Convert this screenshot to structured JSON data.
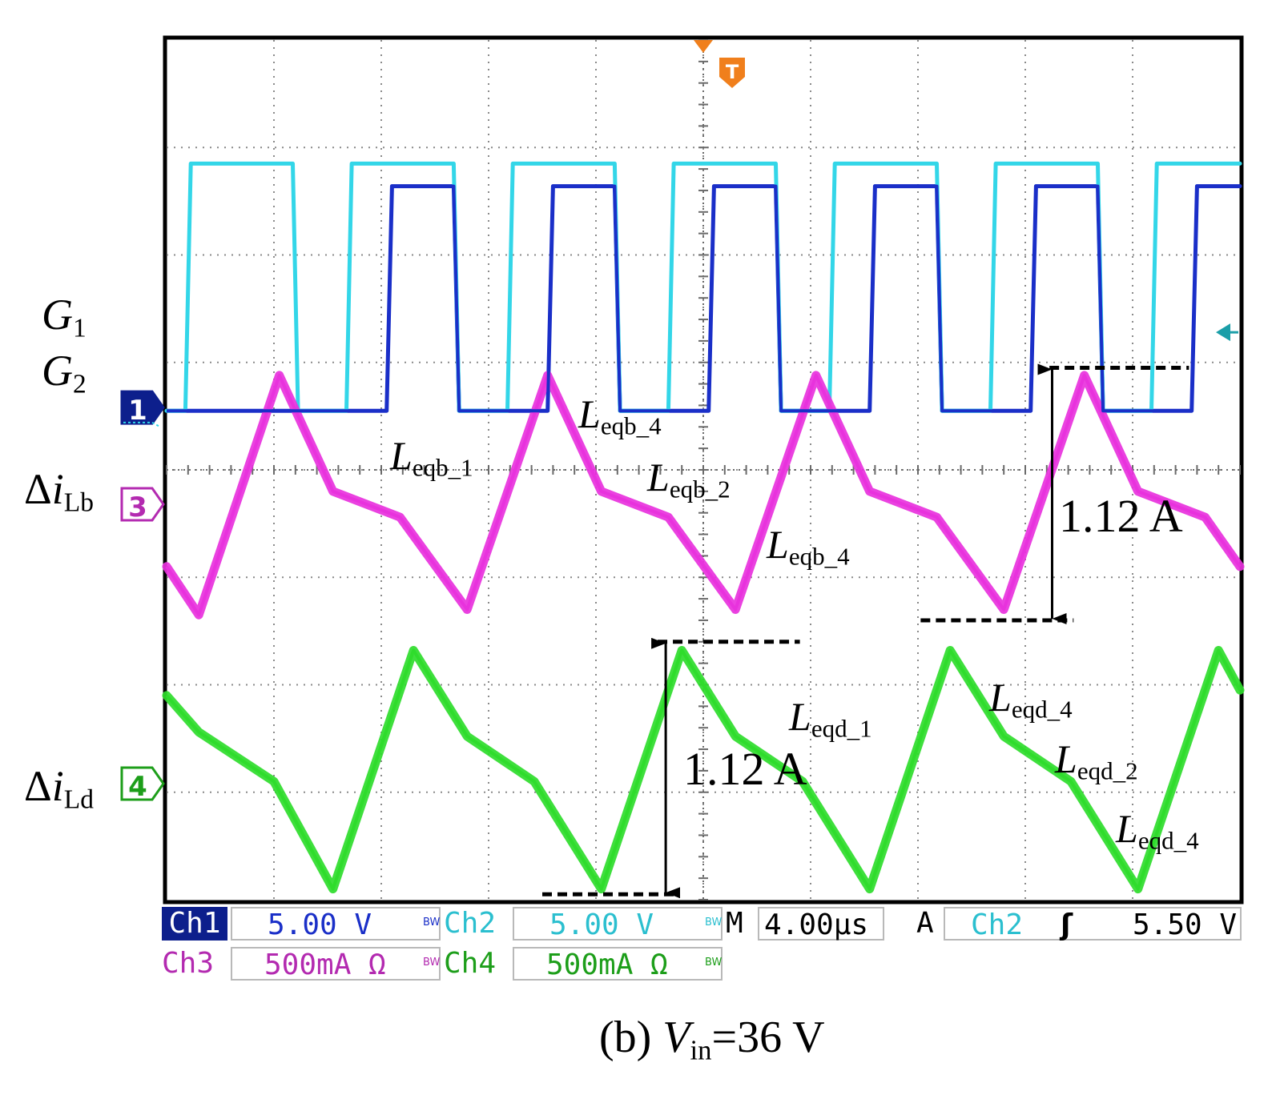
{
  "chart_data": {
    "type": "line",
    "title": "",
    "xlabel": "",
    "ylabel": "",
    "x_divisions": 10,
    "y_divisions": 8,
    "time_per_div_us": 4.0,
    "grid": true,
    "series": [
      {
        "channel": "1",
        "color": "#1a2fc8",
        "points": [
          [
            0,
            0.55
          ],
          [
            8.2,
            0.55
          ],
          [
            8.4,
            2.64
          ],
          [
            10.7,
            2.64
          ],
          [
            10.9,
            0.55
          ],
          [
            14.2,
            0.55
          ],
          [
            14.4,
            2.64
          ],
          [
            16.7,
            2.64
          ],
          [
            16.9,
            0.55
          ],
          [
            20.2,
            0.55
          ],
          [
            20.4,
            2.64
          ],
          [
            22.7,
            2.64
          ],
          [
            22.9,
            0.55
          ],
          [
            26.2,
            0.55
          ],
          [
            26.4,
            2.64
          ],
          [
            28.7,
            2.64
          ],
          [
            28.9,
            0.55
          ],
          [
            32.2,
            0.55
          ],
          [
            32.4,
            2.64
          ],
          [
            34.7,
            2.64
          ],
          [
            34.9,
            0.55
          ],
          [
            38.2,
            0.55
          ],
          [
            38.4,
            2.64
          ],
          [
            40,
            2.64
          ]
        ]
      },
      {
        "channel": "2",
        "color": "#33d6e8",
        "points": [
          [
            0,
            0.55
          ],
          [
            0.7,
            0.55
          ],
          [
            0.9,
            2.85
          ],
          [
            4.7,
            2.85
          ],
          [
            4.9,
            0.55
          ],
          [
            6.7,
            0.55
          ],
          [
            6.9,
            2.85
          ],
          [
            10.7,
            2.85
          ],
          [
            10.9,
            0.55
          ],
          [
            12.7,
            0.55
          ],
          [
            12.9,
            2.85
          ],
          [
            16.7,
            2.85
          ],
          [
            16.9,
            0.55
          ],
          [
            18.7,
            0.55
          ],
          [
            18.9,
            2.85
          ],
          [
            22.7,
            2.85
          ],
          [
            22.9,
            0.55
          ],
          [
            24.7,
            0.55
          ],
          [
            24.9,
            2.85
          ],
          [
            28.7,
            2.85
          ],
          [
            28.9,
            0.55
          ],
          [
            30.7,
            0.55
          ],
          [
            30.9,
            2.85
          ],
          [
            34.7,
            2.85
          ],
          [
            34.9,
            0.55
          ],
          [
            36.7,
            0.55
          ],
          [
            36.9,
            2.85
          ],
          [
            40,
            2.85
          ]
        ]
      },
      {
        "channel": "3",
        "color": "#e832dd",
        "points": [
          [
            0,
            -0.9
          ],
          [
            1.2,
            -1.35
          ],
          [
            4.2,
            0.88
          ],
          [
            6.2,
            -0.2
          ],
          [
            8.7,
            -0.44
          ],
          [
            11.2,
            -1.3
          ],
          [
            14.2,
            0.88
          ],
          [
            16.2,
            -0.2
          ],
          [
            18.7,
            -0.44
          ],
          [
            21.2,
            -1.3
          ],
          [
            24.2,
            0.88
          ],
          [
            26.2,
            -0.2
          ],
          [
            28.7,
            -0.44
          ],
          [
            31.2,
            -1.3
          ],
          [
            34.2,
            0.88
          ],
          [
            36.2,
            -0.2
          ],
          [
            38.7,
            -0.44
          ],
          [
            40,
            -0.9
          ]
        ]
      },
      {
        "channel": "4",
        "color": "#2fdc2c",
        "points": [
          [
            0,
            -2.1
          ],
          [
            1.2,
            -2.44
          ],
          [
            4.0,
            -2.9
          ],
          [
            6.2,
            -3.9
          ],
          [
            9.2,
            -1.68
          ],
          [
            11.2,
            -2.48
          ],
          [
            13.7,
            -2.9
          ],
          [
            16.2,
            -3.9
          ],
          [
            19.2,
            -1.68
          ],
          [
            21.2,
            -2.48
          ],
          [
            23.7,
            -2.9
          ],
          [
            26.2,
            -3.9
          ],
          [
            29.2,
            -1.68
          ],
          [
            31.2,
            -2.48
          ],
          [
            33.7,
            -2.9
          ],
          [
            36.2,
            -3.9
          ],
          [
            39.2,
            -1.68
          ],
          [
            40,
            -2.05
          ]
        ]
      }
    ],
    "annotations": {
      "g1": {
        "label": "G",
        "sub": "1"
      },
      "g2": {
        "label": "G",
        "sub": "2"
      },
      "ilb": {
        "delta": "Δ",
        "label": "i",
        "sub": "Lb"
      },
      "ild": {
        "delta": "Δ",
        "label": "i",
        "sub": "Ld"
      },
      "leqb_1": {
        "label": "L",
        "sub": "eqb_1"
      },
      "leqb_4a": {
        "label": "L",
        "sub": "eqb_4"
      },
      "leqb_2": {
        "label": "L",
        "sub": "eqb_2"
      },
      "leqb_4b": {
        "label": "L",
        "sub": "eqb_4"
      },
      "leqd_1": {
        "label": "L",
        "sub": "eqd_1"
      },
      "leqd_4a": {
        "label": "L",
        "sub": "eqd_4"
      },
      "leqd_2": {
        "label": "L",
        "sub": "eqd_2"
      },
      "leqd_4b": {
        "label": "L",
        "sub": "eqd_4"
      },
      "ripple_b": "1.12 A",
      "ripple_d": "1.12 A"
    },
    "markers": {
      "ch1": "1",
      "ch3": "3",
      "ch4": "4",
      "trigger": "T"
    },
    "status_bar": {
      "ch1": {
        "name": "Ch1",
        "scale": "5.00 V",
        "bw": "BW"
      },
      "ch2": {
        "name": "Ch2",
        "scale": "5.00 V",
        "bw": "BW"
      },
      "ch3": {
        "name": "Ch3",
        "scale": "500mA Ω",
        "bw": "BW"
      },
      "ch4": {
        "name": "Ch4",
        "scale": "500mA Ω",
        "bw": "BW"
      },
      "timebase": {
        "prefix": "M",
        "value": "4.00µs"
      },
      "trig": {
        "prefix": "A",
        "source": "Ch2",
        "slope": "ʃ",
        "level": "5.50 V"
      }
    },
    "caption": {
      "prefix": "(b) ",
      "var": "V",
      "sub": "in",
      "suffix": "=36 V"
    }
  }
}
